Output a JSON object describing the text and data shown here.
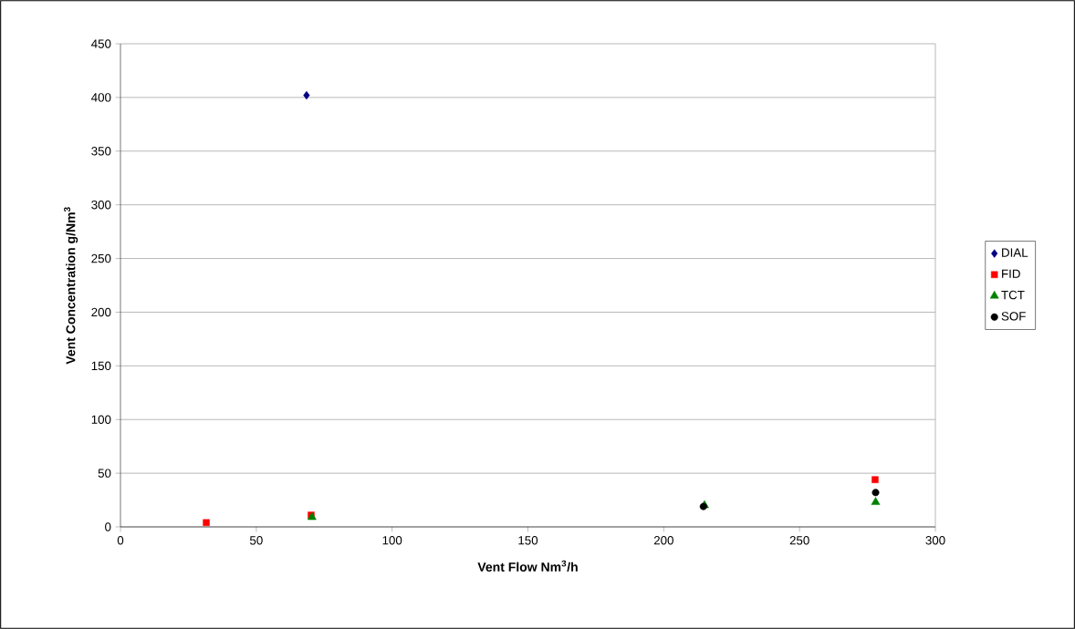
{
  "chart_data": {
    "type": "scatter",
    "xlabel": "Vent Flow Nm$^{3}$/h",
    "ylabel": "Vent Concentration g/Nm$^{3}$",
    "xlim": [
      0,
      300
    ],
    "xticks": [
      0,
      50,
      100,
      150,
      200,
      250,
      300
    ],
    "ylim": [
      0,
      450
    ],
    "yticks": [
      0,
      50,
      100,
      150,
      200,
      250,
      300,
      350,
      400,
      450
    ],
    "grid": "y",
    "legend": "right",
    "series": [
      {
        "name": "DIAL",
        "color": "#000080",
        "marker": "diamond",
        "x": [
          68.5
        ],
        "values": [
          402
        ]
      },
      {
        "name": "FID",
        "color": "#ff0000",
        "marker": "square",
        "x": [
          31.6,
          70.2,
          277.8
        ],
        "values": [
          4,
          11,
          44
        ]
      },
      {
        "name": "TCT",
        "color": "#008000",
        "marker": "triangle",
        "x": [
          70.5,
          215,
          278
        ],
        "values": [
          9,
          20,
          23
        ]
      },
      {
        "name": "SOF",
        "color": "#000000",
        "marker": "circle",
        "x": [
          214.6,
          278
        ],
        "values": [
          19,
          32
        ]
      }
    ]
  }
}
